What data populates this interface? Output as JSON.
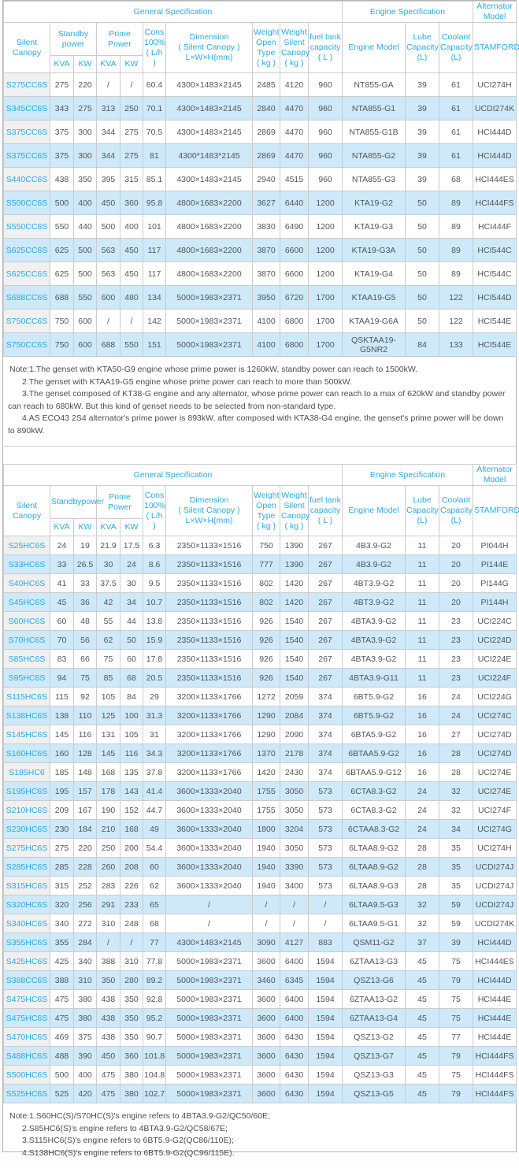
{
  "notes1": [
    "Note:1.The genset with KTA50-G9 engine whose prime power is 1260kW, standby power can reach to 1500kW.",
    "2.The genset with KTAA19-G5 engine whose prime power can reach to more than 500kW.",
    "3.The genset composed of KT38-G engine and any alternator, whose prime power can reach to a max of 620kW and standby power can reach to 680kW. But this kind of genset needs to be selected from non-standard type.",
    "4.AS ECO43 2S4 alternator's prime power is 893kW, after composed with KTA38-G4 engine, the genset's prime power will be down to 890kW."
  ],
  "notes2": [
    "Note:1.S60HC(S)/S70HC(S)'s engine refers to 4BTA3.9-G2/QC50/60E;",
    "2.S85HC6(S)'s engine refers to 4BTA3.9-G2/QC58/67E;",
    "3.S115HC6(S)'s engine refers to 6BT5.9-G2(QC86/110E);",
    "4.S138HC6(S)'s engine refers to 6BT5.9-G2(QC96/115E)."
  ],
  "colors": {
    "accent_cyan": "#29abe2",
    "alt_row_blue": "#cde9fa",
    "model_col_gray": "#f0f0f0",
    "grid_line": "#cccccc"
  },
  "tables": [
    {
      "header": {
        "general_spec": "General Specification",
        "engine_spec": "Engine Specification",
        "alternator_model": "Alternator\nModel",
        "silent_canopy": "Silent Canopy",
        "standby_power": "Standby\npower",
        "prime_power": "Prime Power",
        "kva": "KVA",
        "kw": "KW",
        "cons": "Cons\n100%\n( L/h )",
        "dimension": "Dimension\n( Silent Canopy )\nL×W×H(mm)",
        "weight_open": "Weight\nOpen Type\n( kg )",
        "weight_silent": "Weight\nSilent\nCanopy\n( kg )",
        "fuel_tank": "fuel tank\ncapacity\n( L )",
        "engine_model": "Engine Model",
        "lube": "Lube\nCapacity\n(L)",
        "coolant": "Coolant\nCapacity\n(L)",
        "stamford": "STAMFORD"
      },
      "rows": [
        [
          "S275CC6S",
          "275",
          "220",
          "/",
          "/",
          "60.4",
          "4300×1483×2145",
          "2485",
          "4120",
          "960",
          "NT855-GA",
          "39",
          "61",
          "UCI274H"
        ],
        [
          "S345CC6S",
          "343",
          "275",
          "313",
          "250",
          "70.1",
          "4300×1483×2145",
          "2840",
          "4470",
          "960",
          "NTA855-G1",
          "39",
          "61",
          "UCDI274K"
        ],
        [
          "S375CC6S",
          "375",
          "300",
          "344",
          "275",
          "70.5",
          "4300×1483×2145",
          "2869",
          "4470",
          "960",
          "NTA855-G1B",
          "39",
          "61",
          "HCI444D"
        ],
        [
          "S375CC6S",
          "375",
          "300",
          "344",
          "275",
          "81",
          "4300*1483*2145",
          "2869",
          "4470",
          "960",
          "NTA855-G2",
          "39",
          "61",
          "HCI444D"
        ],
        [
          "S440CC6S",
          "438",
          "350",
          "395",
          "315",
          "85.1",
          "4300×1483×2145",
          "2940",
          "4515",
          "960",
          "NTA855-G3",
          "39",
          "68",
          "HCI444ES"
        ],
        [
          "S500CC6S",
          "500",
          "400",
          "450",
          "360",
          "95.8",
          "4800×1683×2200",
          "3627",
          "6440",
          "1200",
          "KTA19-G2",
          "50",
          "89",
          "HCI444FS"
        ],
        [
          "S550CC6S",
          "550",
          "440",
          "500",
          "400",
          "101",
          "4800×1683×2200",
          "3830",
          "6490",
          "1200",
          "KTA19-G3",
          "50",
          "89",
          "HCI444F"
        ],
        [
          "S625CC6S",
          "625",
          "500",
          "563",
          "450",
          "117",
          "4800×1683×2200",
          "3870",
          "6600",
          "1200",
          "KTA19-G3A",
          "50",
          "89",
          "HCI544C"
        ],
        [
          "S625CC6S",
          "625",
          "500",
          "563",
          "450",
          "117",
          "4800×1683×2200",
          "3870",
          "6600",
          "1200",
          "KTA19-G4",
          "50",
          "89",
          "HCI544C"
        ],
        [
          "S688CC6S",
          "688",
          "550",
          "600",
          "480",
          "134",
          "5000×1983×2371",
          "3950",
          "6720",
          "1700",
          "KTAA19-G5",
          "50",
          "122",
          "HCI544D"
        ],
        [
          "S750CC6S",
          "750",
          "600",
          "/",
          "/",
          "142",
          "5000×1983×2371",
          "4100",
          "6800",
          "1700",
          "KTAA19-G6A",
          "50",
          "122",
          "HCI544E"
        ],
        [
          "S750CC6S",
          "750",
          "600",
          "688",
          "550",
          "151",
          "5000×1983×2371",
          "4100",
          "6800",
          "1700",
          "QSKTAA19-G5NR2",
          "84",
          "133",
          "HCI544E"
        ]
      ]
    },
    {
      "header": {
        "general_spec": "General Specification",
        "engine_spec": "Engine Specification",
        "alternator_model": "Alternator\nModel",
        "silent_canopy": "Silent Canopy",
        "standby_power": "Standbypower",
        "prime_power": "Prime Power",
        "kva": "KVA",
        "kw": "KW",
        "cons": "Cons\n100%\n( L/h )",
        "dimension": "Dimension\n( Silent Canopy )\nL×W×H(mm)",
        "weight_open": "Weight\nOpen Type\n( kg )",
        "weight_silent": "Weight\nSilent\nCanopy\n( kg )",
        "fuel_tank": "fuel tank\ncapacity\n( L )",
        "engine_model": "Engine Model",
        "lube": "Lube\nCapacity\n(L)",
        "coolant": "Coolant\nCapacity\n(L)",
        "stamford": "STAMFORD"
      },
      "rows": [
        [
          "S25HC6S",
          "24",
          "19",
          "21.9",
          "17.5",
          "6.3",
          "2350×1133×1516",
          "750",
          "1390",
          "267",
          "4B3.9-G2",
          "11",
          "20",
          "PI044H"
        ],
        [
          "S33HC6S",
          "33",
          "26.5",
          "30",
          "24",
          "8.6",
          "2350×1133×1516",
          "777",
          "1390",
          "267",
          "4B3.9-G2",
          "11",
          "20",
          "PI144E"
        ],
        [
          "S40HC6S",
          "41",
          "33",
          "37.5",
          "30",
          "9.5",
          "2350×1133×1516",
          "802",
          "1420",
          "267",
          "4BT3.9-G2",
          "11",
          "20",
          "PI144G"
        ],
        [
          "S45HC6S",
          "45",
          "36",
          "42",
          "34",
          "10.7",
          "2350×1133×1516",
          "802",
          "1420",
          "267",
          "4BT3.9-G2",
          "11",
          "20",
          "PI144H"
        ],
        [
          "S60HC6S",
          "60",
          "48",
          "55",
          "44",
          "13.8",
          "2350×1133×1516",
          "926",
          "1540",
          "267",
          "4BTA3.9-G2",
          "11",
          "23",
          "UCI224C"
        ],
        [
          "S70HC6S",
          "70",
          "56",
          "62",
          "50",
          "15.9",
          "2350×1133×1516",
          "926",
          "1540",
          "267",
          "4BTA3.9-G2",
          "11",
          "23",
          "UCI224D"
        ],
        [
          "S85HC6S",
          "83",
          "66",
          "75",
          "60",
          "17.8",
          "2350×1133×1516",
          "926",
          "1540",
          "267",
          "4BTA3.9-G2",
          "11",
          "23",
          "UCI224E"
        ],
        [
          "S95HC6S",
          "94",
          "75",
          "85",
          "68",
          "20.5",
          "2350×1133×1516",
          "926",
          "1540",
          "267",
          "4BTA3.9-G11",
          "11",
          "23",
          "UCI224F"
        ],
        [
          "S115HC6S",
          "115",
          "92",
          "105",
          "84",
          "29",
          "3200×1133×1766",
          "1272",
          "2059",
          "374",
          "6BT5.9-G2",
          "16",
          "24",
          "UCI224G"
        ],
        [
          "S138HC6S",
          "138",
          "110",
          "125",
          "100",
          "31.3",
          "3200×1133×1766",
          "1290",
          "2084",
          "374",
          "6BT5.9-G2",
          "16",
          "24",
          "UCI274C"
        ],
        [
          "S145HC6S",
          "145",
          "116",
          "131",
          "105",
          "31",
          "3200×1133×1766",
          "1290",
          "2090",
          "374",
          "6BTA5.9-G2",
          "16",
          "27",
          "UCI274D"
        ],
        [
          "S160HC6S",
          "160",
          "128",
          "145",
          "116",
          "34.3",
          "3200×1133×1766",
          "1370",
          "2178",
          "374",
          "6BTAA5.9-G2",
          "16",
          "28",
          "UCI274D"
        ],
        [
          "S185HC6",
          "185",
          "148",
          "168",
          "135",
          "37.8",
          "3200×1133×1766",
          "1420",
          "2430",
          "374",
          "6BTAA5.9-G12",
          "16",
          "28",
          "UCI274E"
        ],
        [
          "S195HC6S",
          "195",
          "157",
          "178",
          "143",
          "41.4",
          "3600×1333×2040",
          "1755",
          "3050",
          "573",
          "6CTA8.3-G2",
          "24",
          "32",
          "UCI274E"
        ],
        [
          "S210HC6S",
          "209",
          "167",
          "190",
          "152",
          "44.7",
          "3600×1333×2040",
          "1755",
          "3050",
          "573",
          "6CTA8.3-G2",
          "24",
          "32",
          "UCI274F"
        ],
        [
          "S230HC6S",
          "230",
          "184",
          "210",
          "168",
          "49",
          "3600×1333×2040",
          "1800",
          "3204",
          "573",
          "6CTAA8.3-G2",
          "24",
          "34",
          "UCI274G"
        ],
        [
          "S275HC6S",
          "275",
          "220",
          "250",
          "200",
          "54.4",
          "3600×1333×2040",
          "1940",
          "3050",
          "573",
          "6LTAA8.9-G2",
          "28",
          "35",
          "UCI274H"
        ],
        [
          "S285HC6S",
          "285",
          "228",
          "260",
          "208",
          "60",
          "3600×1333×2040",
          "1940",
          "3390",
          "573",
          "6LTAA8.9-G2",
          "28",
          "35",
          "UCDI274J"
        ],
        [
          "S315HC6S",
          "315",
          "252",
          "283",
          "226",
          "62",
          "3600×1333×2040",
          "1940",
          "3400",
          "573",
          "6LTAA8.9-G3",
          "28",
          "35",
          "UCDI274J"
        ],
        [
          "S320HC6S",
          "320",
          "256",
          "291",
          "233",
          "65",
          "/",
          "/",
          "/",
          "/",
          "6LTAA9.5-G3",
          "32",
          "59",
          "UCDI274J"
        ],
        [
          "S340HC6S",
          "340",
          "272",
          "310",
          "248",
          "68",
          "/",
          "/",
          "/",
          "/",
          "6LTAA9.5-G1",
          "32",
          "59",
          "UCDI274K"
        ],
        [
          "S355HC6S",
          "355",
          "284",
          "/",
          "/",
          "77",
          "4300×1483×2145",
          "3090",
          "4127",
          "883",
          "QSM11-G2",
          "37",
          "39",
          "HCI444D"
        ],
        [
          "S425HC6S",
          "425",
          "340",
          "388",
          "310",
          "77.8",
          "5000×1983×2371",
          "3600",
          "6400",
          "1594",
          "6ZTAA13-G3",
          "45",
          "75",
          "HCI444ES"
        ],
        [
          "S388CC6S",
          "388",
          "310",
          "350",
          "280",
          "89.2",
          "5000×1983×2371",
          "3460",
          "6345",
          "1594",
          "QSZ13-G6",
          "45",
          "79",
          "HCI444D"
        ],
        [
          "S475HC6S",
          "475",
          "380",
          "438",
          "350",
          "92.8",
          "5000×1983×2371",
          "3600",
          "6400",
          "1594",
          "6ZTAA13-G2",
          "45",
          "75",
          "HCI444E"
        ],
        [
          "S475HC6S",
          "475",
          "380",
          "438",
          "350",
          "95.2",
          "5000×1983×2371",
          "3600",
          "6400",
          "1594",
          "6ZTAA13-G4",
          "45",
          "75",
          "HCI444E"
        ],
        [
          "S470HC6S",
          "469",
          "375",
          "438",
          "350",
          "90.7",
          "5000×1983×2371",
          "3600",
          "6430",
          "1594",
          "QSZ13-G2",
          "45",
          "77",
          "HCI444E"
        ],
        [
          "S488HC6S",
          "488",
          "390",
          "450",
          "360",
          "101.8",
          "5000×1983×2371",
          "3600",
          "6430",
          "1594",
          "QSZ13-G7",
          "45",
          "79",
          "HCI444FS"
        ],
        [
          "S500HC6S",
          "500",
          "400",
          "475",
          "380",
          "104.8",
          "5000×1983×2371",
          "3600",
          "6430",
          "1594",
          "QSZ13-G3",
          "45",
          "75",
          "HCI444FS"
        ],
        [
          "S525HC6S",
          "525",
          "420",
          "475",
          "380",
          "102.7",
          "5000×1983×2371",
          "3600",
          "6430",
          "1594",
          "QSZ13-G5",
          "45",
          "79",
          "HCI444FS"
        ]
      ]
    }
  ]
}
